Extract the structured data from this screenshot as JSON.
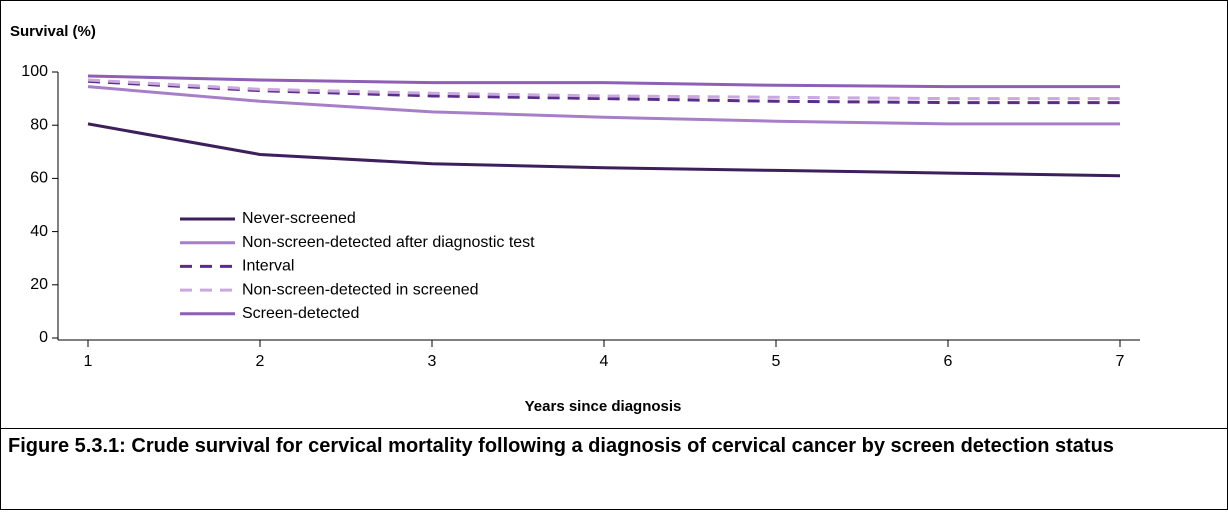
{
  "chart_data": {
    "type": "line",
    "y_label": "Survival (%)",
    "x_label": "Years since diagnosis",
    "caption": "Figure 5.3.1: Crude survival for cervical mortality following a diagnosis of cervical cancer by screen detection status",
    "x": [
      1,
      2,
      3,
      4,
      5,
      6,
      7
    ],
    "xlim": [
      1,
      7
    ],
    "xticks": [
      1,
      2,
      3,
      4,
      5,
      6,
      7
    ],
    "ylim": [
      0,
      100
    ],
    "yticks": [
      0,
      20,
      40,
      60,
      80,
      100
    ],
    "legend": "lower left",
    "series": [
      {
        "name": "Never-screened",
        "color": "#3d1f5c",
        "dashed": false,
        "values": [
          80.5,
          69,
          65.5,
          64,
          63,
          62,
          61
        ]
      },
      {
        "name": "Non-screen-detected after diagnostic test",
        "color": "#a77fc8",
        "dashed": false,
        "values": [
          94.5,
          89,
          85,
          83,
          81.5,
          80.5,
          80.5
        ]
      },
      {
        "name": "Interval",
        "color": "#5b2d8a",
        "dashed": true,
        "values": [
          96.5,
          93,
          91,
          90,
          89,
          88.5,
          88.5
        ]
      },
      {
        "name": "Non-screen-detected in screened",
        "color": "#c9a8e0",
        "dashed": true,
        "values": [
          97,
          93.5,
          92,
          91,
          90.5,
          90,
          90
        ]
      },
      {
        "name": "Screen-detected",
        "color": "#8e5fb5",
        "dashed": false,
        "values": [
          98.5,
          97,
          96,
          96,
          95,
          94.5,
          94.5
        ]
      }
    ]
  }
}
